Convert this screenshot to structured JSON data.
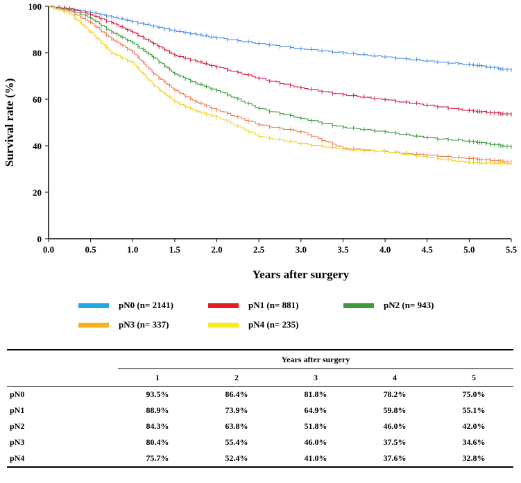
{
  "chart_data": {
    "type": "line",
    "subtype": "kaplan-meier",
    "title": "",
    "xlabel": "Years after surgery",
    "ylabel": "Survival rate (%)",
    "xlim": [
      0,
      5.5
    ],
    "ylim": [
      0,
      100
    ],
    "x_ticks": [
      "0.0",
      "0.5",
      "1.0",
      "1.5",
      "2.0",
      "2.5",
      "3.0",
      "3.5",
      "4.0",
      "4.5",
      "5.0",
      "5.5"
    ],
    "y_ticks": [
      "0",
      "20",
      "40",
      "60",
      "80",
      "100"
    ],
    "series": [
      {
        "name": "pN0 (n= 2141)",
        "legend_color": "#21a8e8",
        "line_color": "#4a8ce8",
        "x": [
          0,
          0.25,
          0.5,
          0.75,
          1.0,
          1.25,
          1.5,
          1.75,
          2.0,
          2.5,
          3.0,
          3.5,
          4.0,
          4.5,
          5.0,
          5.5
        ],
        "y": [
          100,
          99.0,
          97.5,
          95.5,
          93.5,
          91.5,
          89.5,
          88.0,
          86.4,
          84.0,
          81.8,
          80.0,
          78.2,
          76.5,
          75.0,
          72.5
        ]
      },
      {
        "name": "pN1 (n= 881)",
        "legend_color": "#e51e25",
        "line_color": "#d7193e",
        "x": [
          0,
          0.25,
          0.5,
          0.75,
          1.0,
          1.25,
          1.5,
          1.75,
          2.0,
          2.5,
          3.0,
          3.5,
          4.0,
          4.5,
          5.0,
          5.5
        ],
        "y": [
          100,
          99.0,
          96.5,
          93.0,
          88.9,
          84.0,
          79.0,
          76.5,
          73.9,
          69.0,
          64.9,
          62.0,
          59.8,
          57.5,
          55.1,
          53.5
        ]
      },
      {
        "name": "pN2 (n= 943)",
        "legend_color": "#3d9a3d",
        "line_color": "#3c9a3c",
        "x": [
          0,
          0.25,
          0.5,
          0.75,
          1.0,
          1.25,
          1.5,
          1.75,
          2.0,
          2.5,
          3.0,
          3.5,
          4.0,
          4.5,
          5.0,
          5.5
        ],
        "y": [
          100,
          98.5,
          95.0,
          89.0,
          84.3,
          78.0,
          71.0,
          67.0,
          63.8,
          56.0,
          51.8,
          48.0,
          46.0,
          43.5,
          42.0,
          39.5
        ]
      },
      {
        "name": "pN3 (n= 337)",
        "legend_color": "#f7b21a",
        "line_color": "#f07a52",
        "x": [
          0,
          0.25,
          0.5,
          0.75,
          1.0,
          1.25,
          1.5,
          1.75,
          2.0,
          2.5,
          3.0,
          3.5,
          4.0,
          4.5,
          5.0,
          5.5
        ],
        "y": [
          100,
          98.0,
          93.0,
          86.0,
          80.4,
          71.0,
          64.0,
          59.0,
          55.4,
          49.0,
          46.0,
          39.0,
          37.5,
          36.0,
          34.6,
          33.0
        ]
      },
      {
        "name": "pN4 (n= 235)",
        "legend_color": "#f5ee1a",
        "line_color": "#f0d21a",
        "x": [
          0,
          0.25,
          0.5,
          0.75,
          1.0,
          1.25,
          1.5,
          1.75,
          2.0,
          2.5,
          3.0,
          3.5,
          4.0,
          4.5,
          5.0,
          5.5
        ],
        "y": [
          100,
          97.0,
          89.0,
          80.0,
          75.7,
          66.0,
          59.0,
          55.0,
          52.4,
          44.0,
          41.0,
          38.5,
          37.6,
          35.0,
          32.8,
          32.5
        ]
      }
    ]
  },
  "table": {
    "group_header": "Years after surgery",
    "columns": [
      "1",
      "2",
      "3",
      "4",
      "5"
    ],
    "rows": [
      {
        "label": "pN0",
        "values": [
          "93.5%",
          "86.4%",
          "81.8%",
          "78.2%",
          "75.0%"
        ]
      },
      {
        "label": "pN1",
        "values": [
          "88.9%",
          "73.9%",
          "64.9%",
          "59.8%",
          "55.1%"
        ]
      },
      {
        "label": "pN2",
        "values": [
          "84.3%",
          "63.8%",
          "51.8%",
          "46.0%",
          "42.0%"
        ]
      },
      {
        "label": "pN3",
        "values": [
          "80.4%",
          "55.4%",
          "46.0%",
          "37.5%",
          "34.6%"
        ]
      },
      {
        "label": "pN4",
        "values": [
          "75.7%",
          "52.4%",
          "41.0%",
          "37.6%",
          "32.8%"
        ]
      }
    ]
  }
}
